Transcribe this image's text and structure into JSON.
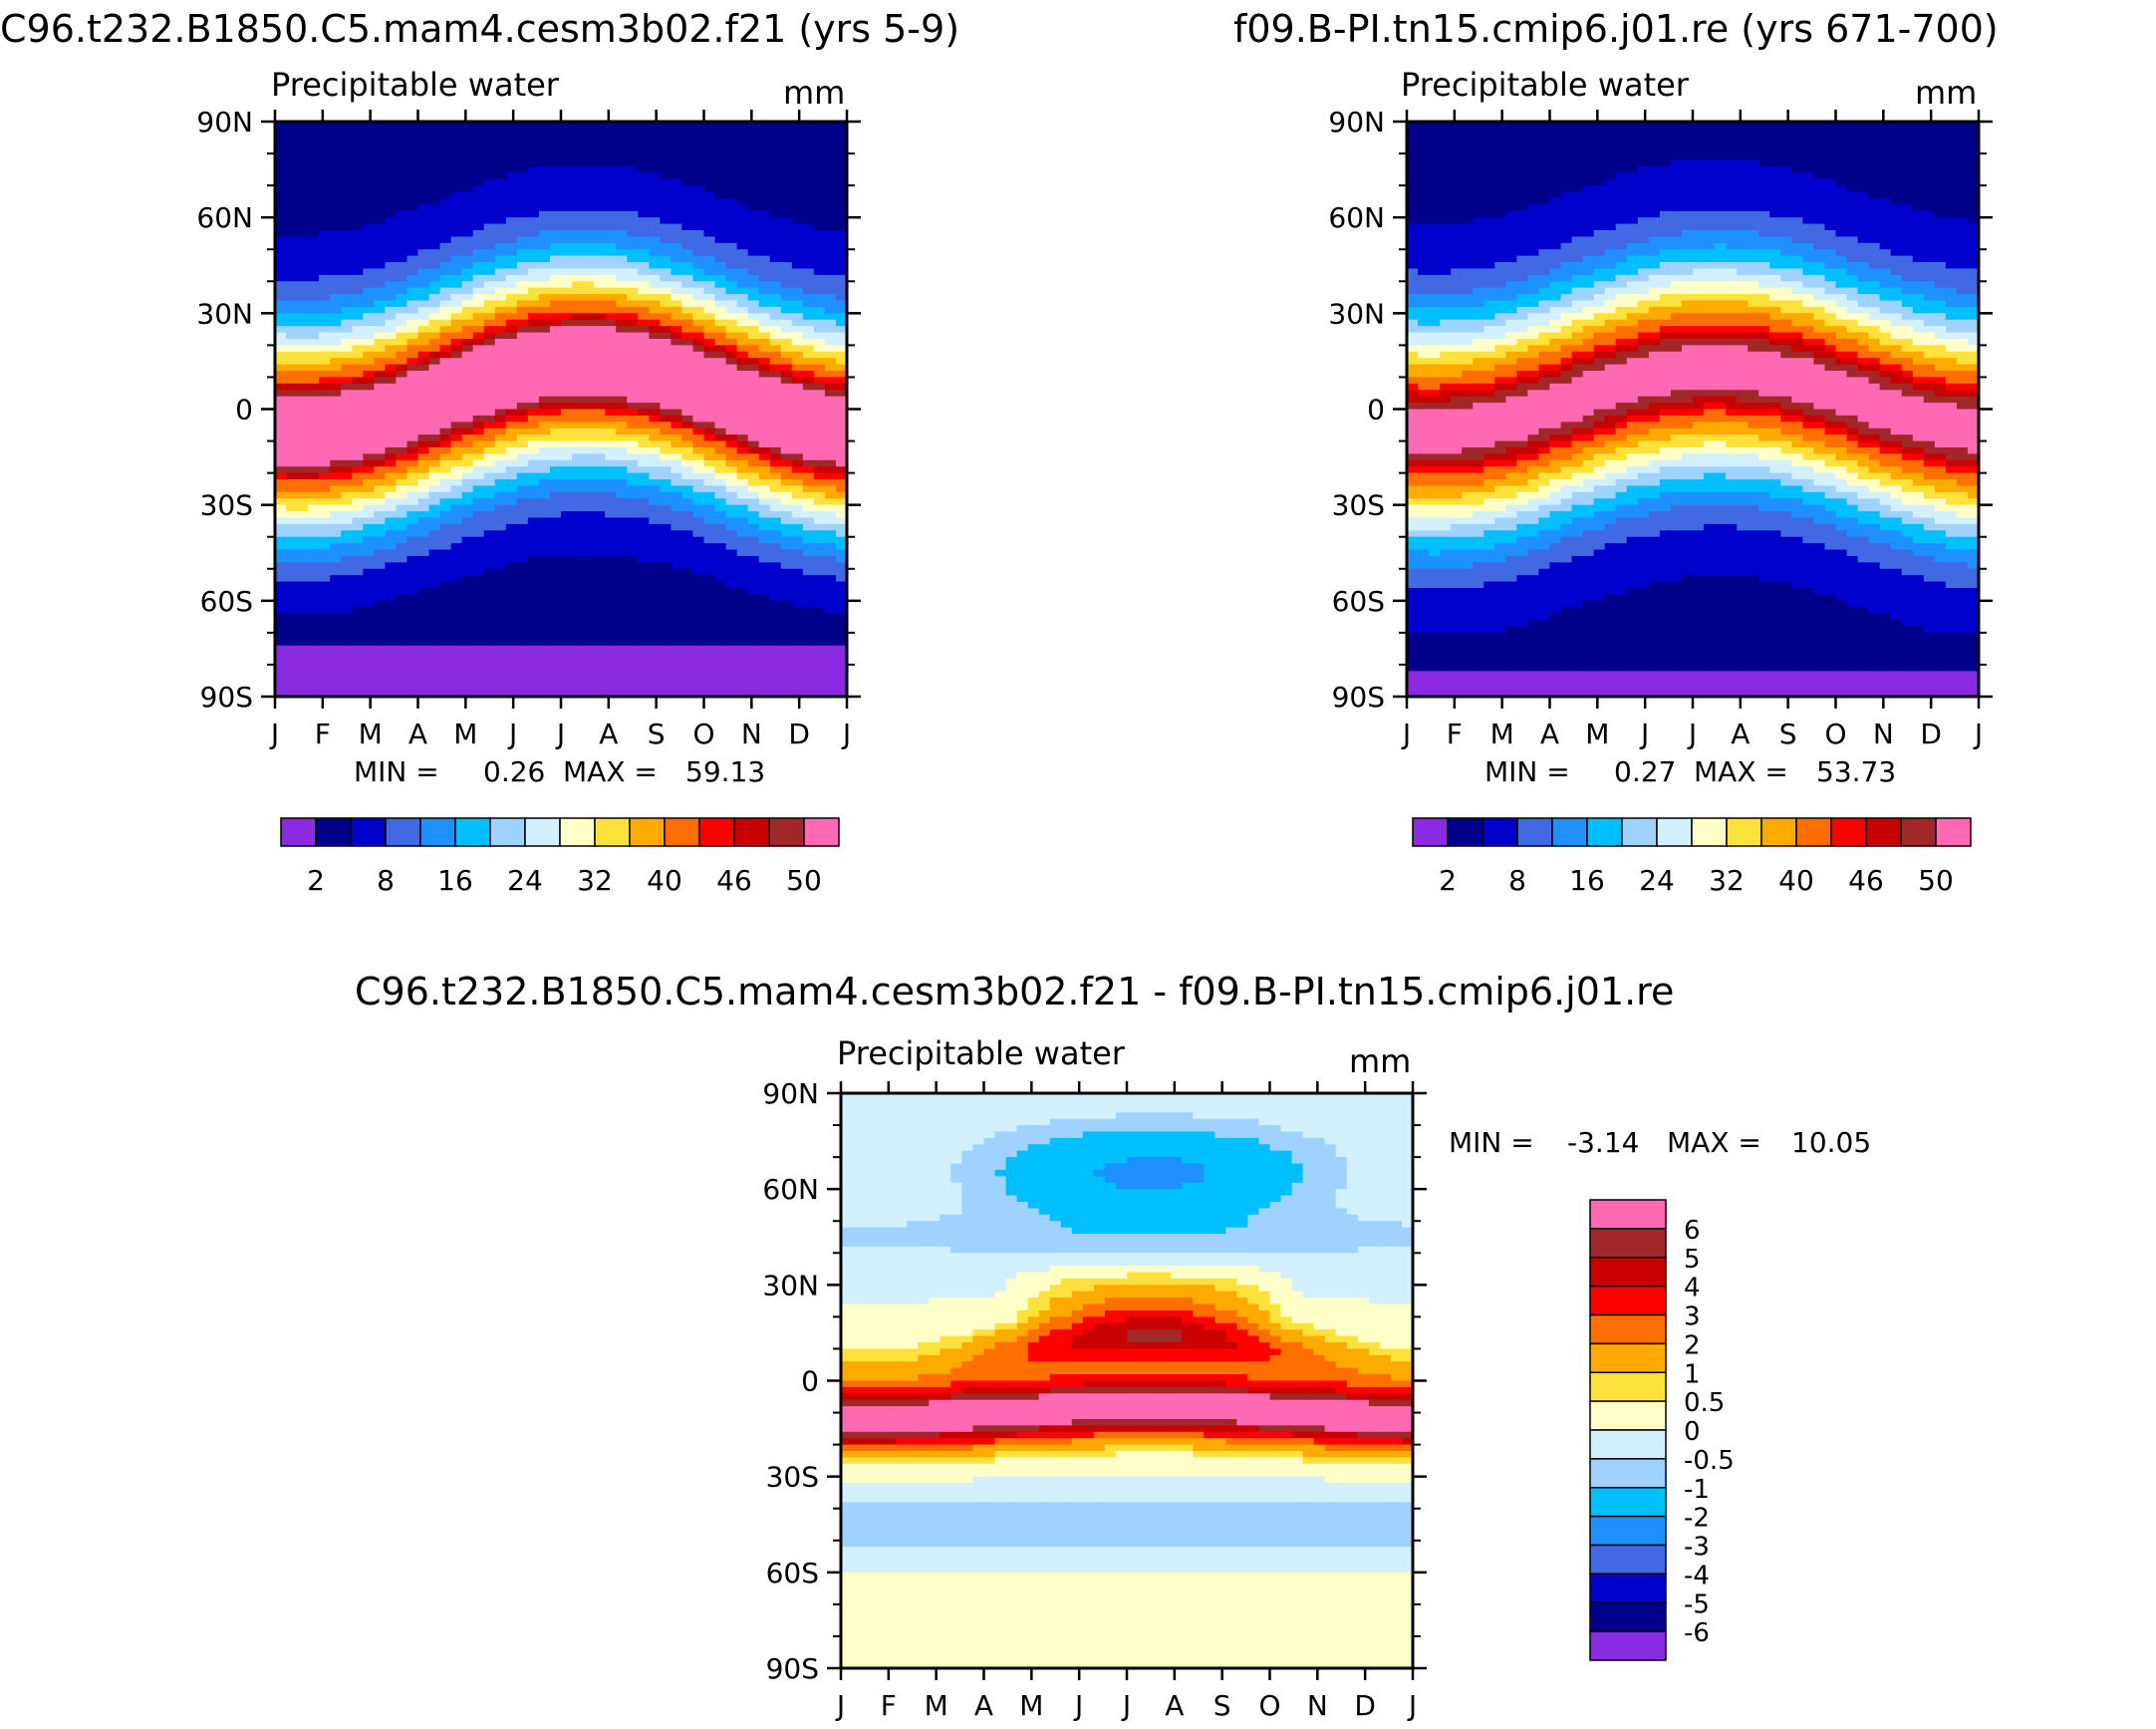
{
  "months": [
    "J",
    "F",
    "M",
    "A",
    "M",
    "J",
    "J",
    "A",
    "S",
    "O",
    "N",
    "D",
    "J"
  ],
  "lat_ticks": [
    "90N",
    "60N",
    "30N",
    "0",
    "30S",
    "60S",
    "90S"
  ],
  "unit": "mm",
  "field_label": "Precipitable water",
  "panel_a": {
    "title": "C96.t232.B1850.C5.mam4.cesm3b02.f21 (yrs 5-9)",
    "min_label": "MIN =",
    "min": "0.26",
    "max_label": "MAX =",
    "max": "59.13"
  },
  "panel_b": {
    "title": "f09.B-PI.tn15.cmip6.j01.re (yrs 671-700)",
    "min_label": "MIN =",
    "min": "0.27",
    "max_label": "MAX =",
    "max": "53.73"
  },
  "panel_diff": {
    "title": "C96.t232.B1850.C5.mam4.cesm3b02.f21 - f09.B-PI.tn15.cmip6.j01.re",
    "min_label": "MIN =",
    "min": "-3.14",
    "max_label": "MAX =",
    "max": "10.05"
  },
  "colorbar_abs": {
    "colors": [
      "#8a2be2",
      "#00008b",
      "#0000cd",
      "#4169e1",
      "#1e90ff",
      "#00bfff",
      "#a0d2ff",
      "#d2f0ff",
      "#ffffc8",
      "#ffe13c",
      "#ffaa00",
      "#ff6e00",
      "#ff0000",
      "#c80000",
      "#a02828",
      "#ff69b4"
    ],
    "labels": [
      "2",
      "8",
      "16",
      "24",
      "32",
      "40",
      "46",
      "50"
    ]
  },
  "colorbar_diff": {
    "colors": [
      "#ff69b4",
      "#a02828",
      "#c80000",
      "#ff0000",
      "#ff6e00",
      "#ffaa00",
      "#ffe13c",
      "#ffffc8",
      "#d2f0ff",
      "#a0d2ff",
      "#00bfff",
      "#1e90ff",
      "#4169e1",
      "#0000cd",
      "#00008b",
      "#8a2be2"
    ],
    "labels": [
      "6",
      "5",
      "4",
      "3",
      "2",
      "1",
      "0.5",
      "0",
      "-0.5",
      "-1",
      "-2",
      "-3",
      "-4",
      "-5",
      "-6"
    ]
  },
  "chart_data": [
    {
      "type": "heatmap",
      "title": "C96.t232.B1850.C5.mam4.cesm3b02.f21 (yrs 5-9)",
      "subtitle": "Precipitable water",
      "unit": "mm",
      "x": [
        "J",
        "F",
        "M",
        "A",
        "M",
        "J",
        "J",
        "A",
        "S",
        "O",
        "N",
        "D",
        "J"
      ],
      "y": [
        "90N",
        "60N",
        "30N",
        "0",
        "30S",
        "60S",
        "90S"
      ],
      "zmin": 0.26,
      "zmax": 59.13,
      "levels": [
        2,
        8,
        16,
        24,
        32,
        40,
        46,
        50
      ]
    },
    {
      "type": "heatmap",
      "title": "f09.B-PI.tn15.cmip6.j01.re (yrs 671-700)",
      "subtitle": "Precipitable water",
      "unit": "mm",
      "x": [
        "J",
        "F",
        "M",
        "A",
        "M",
        "J",
        "J",
        "A",
        "S",
        "O",
        "N",
        "D",
        "J"
      ],
      "y": [
        "90N",
        "60N",
        "30N",
        "0",
        "30S",
        "60S",
        "90S"
      ],
      "zmin": 0.27,
      "zmax": 53.73,
      "levels": [
        2,
        8,
        16,
        24,
        32,
        40,
        46,
        50
      ]
    },
    {
      "type": "heatmap",
      "title": "C96.t232.B1850.C5.mam4.cesm3b02.f21 - f09.B-PI.tn15.cmip6.j01.re",
      "subtitle": "Precipitable water",
      "unit": "mm",
      "x": [
        "J",
        "F",
        "M",
        "A",
        "M",
        "J",
        "J",
        "A",
        "S",
        "O",
        "N",
        "D",
        "J"
      ],
      "y": [
        "90N",
        "60N",
        "30N",
        "0",
        "30S",
        "60S",
        "90S"
      ],
      "zmin": -3.14,
      "zmax": 10.05,
      "levels": [
        6,
        5,
        4,
        3,
        2,
        1,
        0.5,
        0,
        -0.5,
        -1,
        -2,
        -3,
        -4,
        -5,
        -6
      ]
    }
  ]
}
